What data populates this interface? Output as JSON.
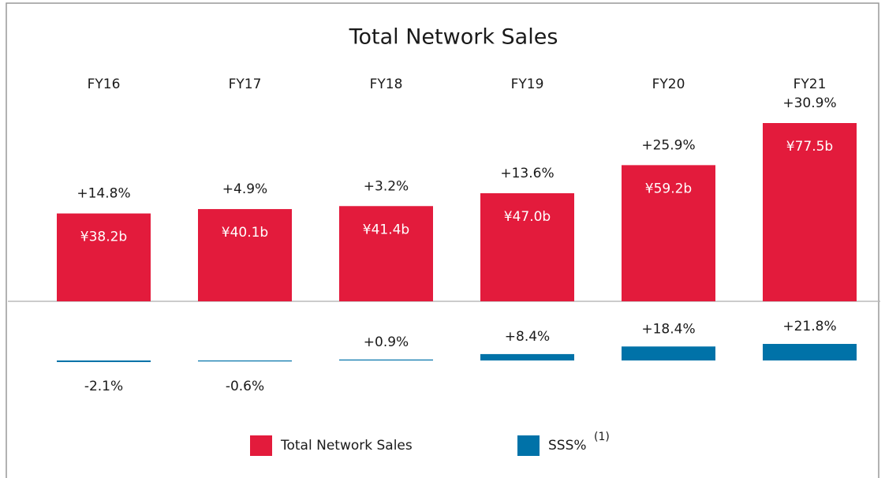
{
  "chart_data": {
    "type": "bar",
    "title": "Total Network Sales",
    "categories": [
      "FY16",
      "FY17",
      "FY18",
      "FY19",
      "FY20",
      "FY21"
    ],
    "series": [
      {
        "name": "Total Network Sales",
        "color": "#e31b3c",
        "values": [
          38.2,
          40.1,
          41.4,
          47.0,
          59.2,
          77.5
        ],
        "value_labels": [
          "¥38.2b",
          "¥40.1b",
          "¥41.4b",
          "¥47.0b",
          "¥59.2b",
          "¥77.5b"
        ]
      },
      {
        "name": "SSS%",
        "color": "#0072a8",
        "values": [
          -2.1,
          -0.6,
          0.9,
          8.4,
          18.4,
          21.8
        ],
        "value_labels": [
          "-2.1%",
          "-0.6%",
          "+0.9%",
          "+8.4%",
          "+18.4%",
          "+21.8%"
        ]
      }
    ],
    "annotations": [
      "+14.8%",
      "+4.9%",
      "+3.2%",
      "+13.6%",
      "+25.9%",
      "+30.9%"
    ],
    "legend_note": "(1)"
  }
}
